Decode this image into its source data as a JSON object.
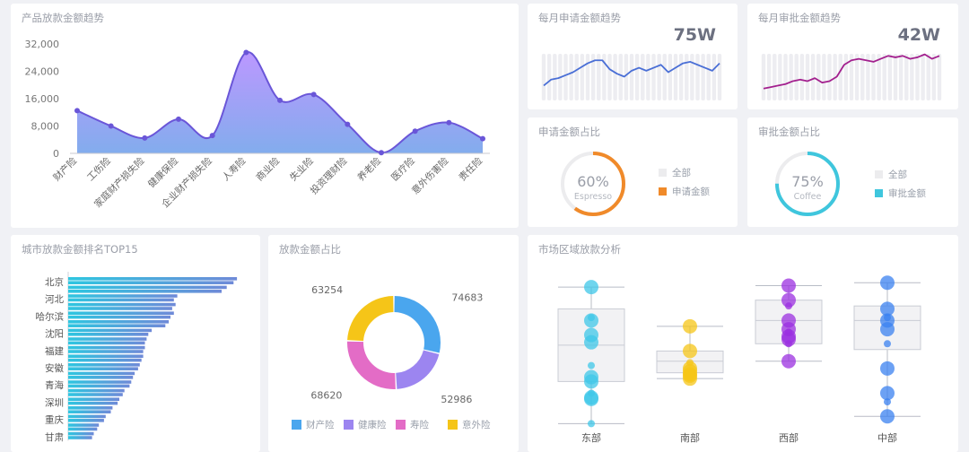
{
  "colors": {
    "purple": "#7b63e8",
    "blue": "#4aa6ee",
    "gray": "#e6e7eb"
  },
  "product": {
    "title": "产品放款金额趋势"
  },
  "apply": {
    "title": "每月申请金额趋势",
    "value": "75W"
  },
  "approve": {
    "title": "每月审批金额趋势",
    "value": "42W"
  },
  "apply_ratio": {
    "title": "申请金额占比",
    "pct": "60%",
    "sub": "Espresso",
    "fraction": 0.6,
    "legend_all": "全部",
    "legend_item": "申请金额",
    "color": "#f08a2a"
  },
  "approve_ratio": {
    "title": "审批金额占比",
    "pct": "75%",
    "sub": "Coffee",
    "fraction": 0.75,
    "legend_all": "全部",
    "legend_item": "审批金额",
    "color": "#3fc6dd"
  },
  "city": {
    "title": "城市放款金额排名TOP15"
  },
  "donut": {
    "title": "放款金额占比"
  },
  "region": {
    "title": "市场区域放款分析"
  },
  "chart_data": [
    {
      "type": "area",
      "categories": [
        "财产险",
        "工伤险",
        "家庭财产损失险",
        "健康保险",
        "企业财产损失险",
        "人寿险",
        "商业险",
        "失业险",
        "投资理财险",
        "养老险",
        "医疗险",
        "意外伤害险",
        "责任险"
      ],
      "values": [
        12500,
        8000,
        4500,
        10000,
        5200,
        29500,
        15500,
        17200,
        8500,
        200,
        6500,
        9000,
        4300
      ],
      "ylim": [
        0,
        32000
      ],
      "yticks": [
        "0",
        "8,000",
        "16,000",
        "24,000",
        "32,000"
      ]
    },
    {
      "type": "line",
      "series": [
        {
          "values": [
            10,
            14,
            15,
            17,
            19,
            22,
            25,
            27,
            27,
            21,
            18,
            16,
            20,
            22,
            20,
            22,
            24,
            19,
            22,
            25,
            26,
            24,
            22,
            20,
            25
          ]
        }
      ],
      "ylim": [
        0,
        35
      ]
    },
    {
      "type": "line",
      "series": [
        {
          "values": [
            8,
            9,
            10,
            11,
            13,
            14,
            13,
            15,
            12,
            13,
            16,
            24,
            27,
            28,
            27,
            26,
            28,
            30,
            29,
            30,
            28,
            29,
            31,
            28,
            30
          ]
        }
      ],
      "ylim": [
        0,
        35
      ]
    },
    {
      "type": "bar",
      "categories": [
        "北京",
        "",
        "河北",
        "",
        "哈尔滨",
        "",
        "沈阳",
        "",
        "福建",
        "",
        "安徽",
        "",
        "青海",
        "",
        "深圳",
        "",
        "重庆",
        "",
        "甘肃"
      ],
      "values": [
        99,
        93,
        64,
        63,
        62,
        59,
        49,
        46,
        45,
        44,
        42,
        39,
        37,
        33,
        30,
        26,
        22,
        18,
        15
      ],
      "values2": [
        97,
        90,
        62,
        61,
        60,
        57,
        47,
        45,
        44,
        43,
        41,
        38,
        36,
        32,
        29,
        25,
        21,
        17,
        14
      ]
    },
    {
      "type": "pie",
      "categories": [
        "财产险",
        "健康险",
        "寿险",
        "意外险"
      ],
      "values": [
        74683,
        52986,
        68620,
        63254
      ],
      "colors": [
        "#4aa6ee",
        "#9c85f0",
        "#e36cc6",
        "#f5c518"
      ]
    },
    {
      "type": "scatter",
      "categories": [
        "东部",
        "南部",
        "西部",
        "中部"
      ],
      "colors": [
        "#3fc7e8",
        "#f5c518",
        "#9b30e0",
        "#3b82f0"
      ],
      "boxes": [
        [
          0.95,
          0.3,
          0.55,
          0.8,
          0.01
        ],
        [
          0.68,
          0.36,
          0.44,
          0.51,
          0.32
        ],
        [
          0.96,
          0.56,
          0.72,
          0.86,
          0.44
        ],
        [
          0.98,
          0.52,
          0.72,
          0.82,
          0.06
        ]
      ],
      "points": [
        [
          0.95,
          0.72,
          0.74,
          0.62,
          0.57,
          0.41,
          0.33,
          0.3,
          0.22,
          0.19,
          0.18,
          0.01
        ],
        [
          0.68,
          0.51,
          0.43,
          0.39,
          0.37,
          0.36,
          0.35,
          0.34,
          0.33,
          0.32
        ],
        [
          0.96,
          0.86,
          0.82,
          0.72,
          0.66,
          0.64,
          0.61,
          0.59,
          0.56,
          0.44
        ],
        [
          0.98,
          0.8,
          0.74,
          0.72,
          0.66,
          0.56,
          0.39,
          0.22,
          0.16,
          0.06
        ]
      ]
    }
  ],
  "donut_labels": [
    "74683",
    "52986",
    "68620",
    "63254"
  ],
  "region_labels": [
    "东部",
    "南部",
    "西部",
    "中部"
  ]
}
